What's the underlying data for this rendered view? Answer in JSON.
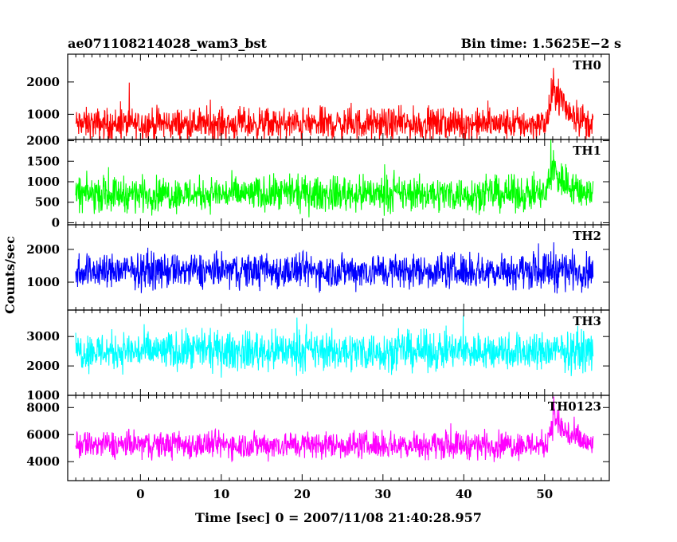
{
  "header": {
    "title": "ae071108214028_wam3_bst",
    "bin_time": "Bin time: 1.5625E−2 s"
  },
  "chart_data": {
    "type": "line",
    "xlabel": "Time [sec] 0 = 2007/11/08 21:40:28.957",
    "ylabel": "Counts/sec",
    "xlim": [
      -9,
      58
    ],
    "x_ticks": [
      0,
      10,
      20,
      30,
      40,
      50
    ],
    "x_tick_labels": [
      "0",
      "10",
      "20",
      "30",
      "40",
      "50"
    ],
    "bin_time_s": 0.015625,
    "data_range": [
      -8,
      56
    ],
    "panels": [
      {
        "name": "TH0",
        "color": "#ff0000",
        "ylim": [
          220,
          2860
        ],
        "y_ticks": [
          1000,
          2000
        ],
        "y_tick_labels": [
          "1000",
          "2000"
        ],
        "base": 700,
        "noise": 380,
        "burst": {
          "start": 50.2,
          "peak": 51.2,
          "end": 55,
          "amplitude": 1150
        }
      },
      {
        "name": "TH1",
        "color": "#00ff00",
        "ylim": [
          -50,
          2030
        ],
        "y_ticks": [
          0,
          500,
          1000,
          1500,
          2000
        ],
        "y_tick_labels": [
          "0",
          "500",
          "1000",
          "1500",
          "2000"
        ],
        "base": 700,
        "noise": 330,
        "burst": {
          "start": 50.2,
          "peak": 51.0,
          "end": 55,
          "amplitude": 650
        }
      },
      {
        "name": "TH2",
        "color": "#0000ff",
        "ylim": [
          150,
          2750
        ],
        "y_ticks": [
          1000,
          2000
        ],
        "y_tick_labels": [
          "1000",
          "2000"
        ],
        "base": 1350,
        "noise": 420,
        "burst": {
          "start": 50.0,
          "peak": 51.0,
          "end": 54,
          "amplitude": 100
        }
      },
      {
        "name": "TH3",
        "color": "#00ffff",
        "ylim": [
          1000,
          3900
        ],
        "y_ticks": [
          1000,
          2000,
          3000
        ],
        "y_tick_labels": [
          "1000",
          "2000",
          "3000"
        ],
        "base": 2500,
        "noise": 520,
        "burst": {
          "start": 50.0,
          "peak": 51.0,
          "end": 54,
          "amplitude": 0
        }
      },
      {
        "name": "TH0123",
        "color": "#ff00ff",
        "ylim": [
          2600,
          8900
        ],
        "y_ticks": [
          4000,
          6000,
          8000
        ],
        "y_tick_labels": [
          "4000",
          "6000",
          "8000"
        ],
        "base": 5250,
        "noise": 800,
        "burst": {
          "start": 50.2,
          "peak": 51.1,
          "end": 55,
          "amplitude": 2200
        }
      }
    ]
  }
}
